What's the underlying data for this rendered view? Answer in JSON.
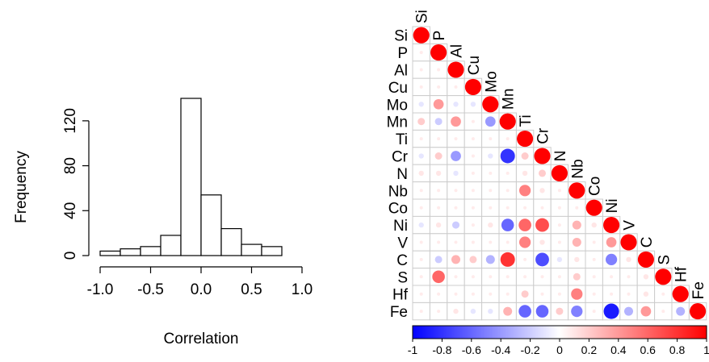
{
  "chart_data": [
    {
      "type": "bar",
      "title": "",
      "xlabel": "Correlation",
      "ylabel": "Frequency",
      "bin_edges": [
        -1.0,
        -0.8,
        -0.6,
        -0.4,
        -0.2,
        0.0,
        0.2,
        0.4,
        0.6,
        0.8
      ],
      "values": [
        4,
        6,
        8,
        18,
        140,
        54,
        24,
        10,
        8
      ],
      "xlim": [
        -1.0,
        1.0
      ],
      "ylim": [
        0,
        140
      ],
      "xticks": [
        "-1.0",
        "-0.5",
        "0.0",
        "0.5",
        "1.0"
      ],
      "yticks": [
        "0",
        "40",
        "80",
        "120"
      ],
      "bar_color": "#ffffff",
      "edge_color": "#000000"
    },
    {
      "type": "heatmap",
      "title": "",
      "variables": [
        "Si",
        "P",
        "Al",
        "Cu",
        "Mo",
        "Mn",
        "Ti",
        "Cr",
        "N",
        "Nb",
        "Co",
        "Ni",
        "V",
        "C",
        "S",
        "Hf",
        "Fe"
      ],
      "triangle": "lower",
      "cells": [
        [
          "Mo",
          "Si",
          -0.1
        ],
        [
          "Mo",
          "P",
          0.4
        ],
        [
          "Mo",
          "Al",
          -0.1
        ],
        [
          "Mo",
          "Cu",
          -0.1
        ],
        [
          "Mn",
          "Si",
          0.2
        ],
        [
          "Mn",
          "P",
          -0.2
        ],
        [
          "Mn",
          "Al",
          0.4
        ],
        [
          "Mn",
          "Mo",
          -0.4
        ],
        [
          "Cr",
          "Si",
          -0.1
        ],
        [
          "Cr",
          "P",
          0.2
        ],
        [
          "Cr",
          "Al",
          -0.4
        ],
        [
          "Cr",
          "Mo",
          -0.1
        ],
        [
          "Cr",
          "Mn",
          -0.8
        ],
        [
          "Cr",
          "Ti",
          0.2
        ],
        [
          "N",
          "Si",
          0.1
        ],
        [
          "N",
          "P",
          0.1
        ],
        [
          "N",
          "Al",
          -0.1
        ],
        [
          "N",
          "Ti",
          0.1
        ],
        [
          "N",
          "Cr",
          0.2
        ],
        [
          "Nb",
          "Ti",
          0.5
        ],
        [
          "Nb",
          "Cr",
          0.1
        ],
        [
          "Ni",
          "Si",
          -0.1
        ],
        [
          "Ni",
          "P",
          0.1
        ],
        [
          "Ni",
          "Al",
          -0.2
        ],
        [
          "Ni",
          "Mo",
          0.1
        ],
        [
          "Ni",
          "Mn",
          -0.6
        ],
        [
          "Ni",
          "Ti",
          0.6
        ],
        [
          "Ni",
          "Cr",
          0.7
        ],
        [
          "Ni",
          "Nb",
          0.3
        ],
        [
          "Ni",
          "Co",
          0.1
        ],
        [
          "V",
          "Ti",
          0.5
        ],
        [
          "V",
          "Cr",
          0.1
        ],
        [
          "V",
          "Nb",
          0.3
        ],
        [
          "V",
          "Ni",
          0.4
        ],
        [
          "C",
          "P",
          -0.2
        ],
        [
          "C",
          "Al",
          0.3
        ],
        [
          "C",
          "Cu",
          0.2
        ],
        [
          "C",
          "Mo",
          -0.3
        ],
        [
          "C",
          "Mn",
          0.8
        ],
        [
          "C",
          "Cr",
          -0.7
        ],
        [
          "C",
          "N",
          -0.1
        ],
        [
          "C",
          "Nb",
          0.1
        ],
        [
          "C",
          "Ni",
          -0.5
        ],
        [
          "C",
          "V",
          0.1
        ],
        [
          "S",
          "P",
          0.6
        ],
        [
          "S",
          "Nb",
          0.2
        ],
        [
          "S",
          "C",
          0.1
        ],
        [
          "Hf",
          "Ti",
          0.2
        ],
        [
          "Hf",
          "Nb",
          0.5
        ],
        [
          "Hf",
          "C",
          0.1
        ],
        [
          "Fe",
          "Al",
          0.1
        ],
        [
          "Fe",
          "Cu",
          -0.1
        ],
        [
          "Fe",
          "Mo",
          -0.1
        ],
        [
          "Fe",
          "Mn",
          0.3
        ],
        [
          "Fe",
          "Ti",
          -0.6
        ],
        [
          "Fe",
          "Cr",
          -0.6
        ],
        [
          "Fe",
          "N",
          0.2
        ],
        [
          "Fe",
          "Nb",
          -0.5
        ],
        [
          "Fe",
          "Ni",
          -0.9
        ],
        [
          "Fe",
          "V",
          -0.3
        ],
        [
          "Fe",
          "C",
          0.4
        ],
        [
          "Fe",
          "Hf",
          -0.3
        ]
      ],
      "legend": {
        "placement": "bottom",
        "ticks": [
          "-1",
          "-0.8",
          "-0.6",
          "-0.4",
          "-0.2",
          "0",
          "0.2",
          "0.4",
          "0.6",
          "0.8",
          "1"
        ],
        "range": [
          -1,
          1
        ]
      },
      "colors": {
        "negative": "#0000ff",
        "zero": "#ffffff",
        "positive": "#ff0000",
        "grid": "#cccccc"
      }
    }
  ]
}
